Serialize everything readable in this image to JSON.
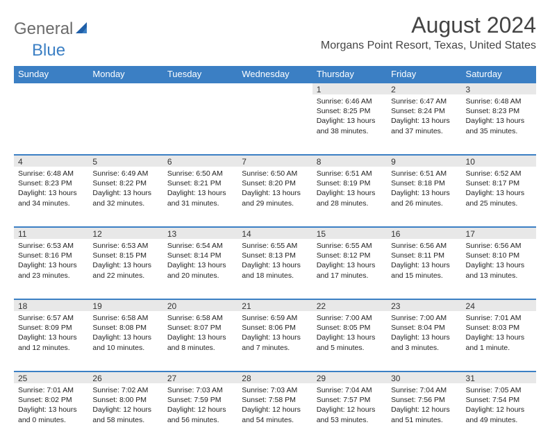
{
  "logo": {
    "part1": "General",
    "part2": "Blue"
  },
  "title": "August 2024",
  "location": "Morgans Point Resort, Texas, United States",
  "colors": {
    "header_bg": "#3b7fc4",
    "header_text": "#ffffff",
    "daynum_bg": "#e8e8e8",
    "row_border": "#3b7fc4",
    "logo_gray": "#6b6b6b",
    "logo_blue": "#3b7fc4"
  },
  "weekdays": [
    "Sunday",
    "Monday",
    "Tuesday",
    "Wednesday",
    "Thursday",
    "Friday",
    "Saturday"
  ],
  "weeks": [
    [
      null,
      null,
      null,
      null,
      {
        "n": "1",
        "sr": "6:46 AM",
        "ss": "8:25 PM",
        "dh": "13",
        "dm": "38"
      },
      {
        "n": "2",
        "sr": "6:47 AM",
        "ss": "8:24 PM",
        "dh": "13",
        "dm": "37"
      },
      {
        "n": "3",
        "sr": "6:48 AM",
        "ss": "8:23 PM",
        "dh": "13",
        "dm": "35"
      }
    ],
    [
      {
        "n": "4",
        "sr": "6:48 AM",
        "ss": "8:23 PM",
        "dh": "13",
        "dm": "34"
      },
      {
        "n": "5",
        "sr": "6:49 AM",
        "ss": "8:22 PM",
        "dh": "13",
        "dm": "32"
      },
      {
        "n": "6",
        "sr": "6:50 AM",
        "ss": "8:21 PM",
        "dh": "13",
        "dm": "31"
      },
      {
        "n": "7",
        "sr": "6:50 AM",
        "ss": "8:20 PM",
        "dh": "13",
        "dm": "29"
      },
      {
        "n": "8",
        "sr": "6:51 AM",
        "ss": "8:19 PM",
        "dh": "13",
        "dm": "28"
      },
      {
        "n": "9",
        "sr": "6:51 AM",
        "ss": "8:18 PM",
        "dh": "13",
        "dm": "26"
      },
      {
        "n": "10",
        "sr": "6:52 AM",
        "ss": "8:17 PM",
        "dh": "13",
        "dm": "25"
      }
    ],
    [
      {
        "n": "11",
        "sr": "6:53 AM",
        "ss": "8:16 PM",
        "dh": "13",
        "dm": "23"
      },
      {
        "n": "12",
        "sr": "6:53 AM",
        "ss": "8:15 PM",
        "dh": "13",
        "dm": "22"
      },
      {
        "n": "13",
        "sr": "6:54 AM",
        "ss": "8:14 PM",
        "dh": "13",
        "dm": "20"
      },
      {
        "n": "14",
        "sr": "6:55 AM",
        "ss": "8:13 PM",
        "dh": "13",
        "dm": "18"
      },
      {
        "n": "15",
        "sr": "6:55 AM",
        "ss": "8:12 PM",
        "dh": "13",
        "dm": "17"
      },
      {
        "n": "16",
        "sr": "6:56 AM",
        "ss": "8:11 PM",
        "dh": "13",
        "dm": "15"
      },
      {
        "n": "17",
        "sr": "6:56 AM",
        "ss": "8:10 PM",
        "dh": "13",
        "dm": "13"
      }
    ],
    [
      {
        "n": "18",
        "sr": "6:57 AM",
        "ss": "8:09 PM",
        "dh": "13",
        "dm": "12"
      },
      {
        "n": "19",
        "sr": "6:58 AM",
        "ss": "8:08 PM",
        "dh": "13",
        "dm": "10"
      },
      {
        "n": "20",
        "sr": "6:58 AM",
        "ss": "8:07 PM",
        "dh": "13",
        "dm": "8"
      },
      {
        "n": "21",
        "sr": "6:59 AM",
        "ss": "8:06 PM",
        "dh": "13",
        "dm": "7"
      },
      {
        "n": "22",
        "sr": "7:00 AM",
        "ss": "8:05 PM",
        "dh": "13",
        "dm": "5"
      },
      {
        "n": "23",
        "sr": "7:00 AM",
        "ss": "8:04 PM",
        "dh": "13",
        "dm": "3"
      },
      {
        "n": "24",
        "sr": "7:01 AM",
        "ss": "8:03 PM",
        "dh": "13",
        "dm": "1",
        "singular": true
      }
    ],
    [
      {
        "n": "25",
        "sr": "7:01 AM",
        "ss": "8:02 PM",
        "dh": "13",
        "dm": "0"
      },
      {
        "n": "26",
        "sr": "7:02 AM",
        "ss": "8:00 PM",
        "dh": "12",
        "dm": "58"
      },
      {
        "n": "27",
        "sr": "7:03 AM",
        "ss": "7:59 PM",
        "dh": "12",
        "dm": "56"
      },
      {
        "n": "28",
        "sr": "7:03 AM",
        "ss": "7:58 PM",
        "dh": "12",
        "dm": "54"
      },
      {
        "n": "29",
        "sr": "7:04 AM",
        "ss": "7:57 PM",
        "dh": "12",
        "dm": "53"
      },
      {
        "n": "30",
        "sr": "7:04 AM",
        "ss": "7:56 PM",
        "dh": "12",
        "dm": "51"
      },
      {
        "n": "31",
        "sr": "7:05 AM",
        "ss": "7:54 PM",
        "dh": "12",
        "dm": "49"
      }
    ]
  ]
}
